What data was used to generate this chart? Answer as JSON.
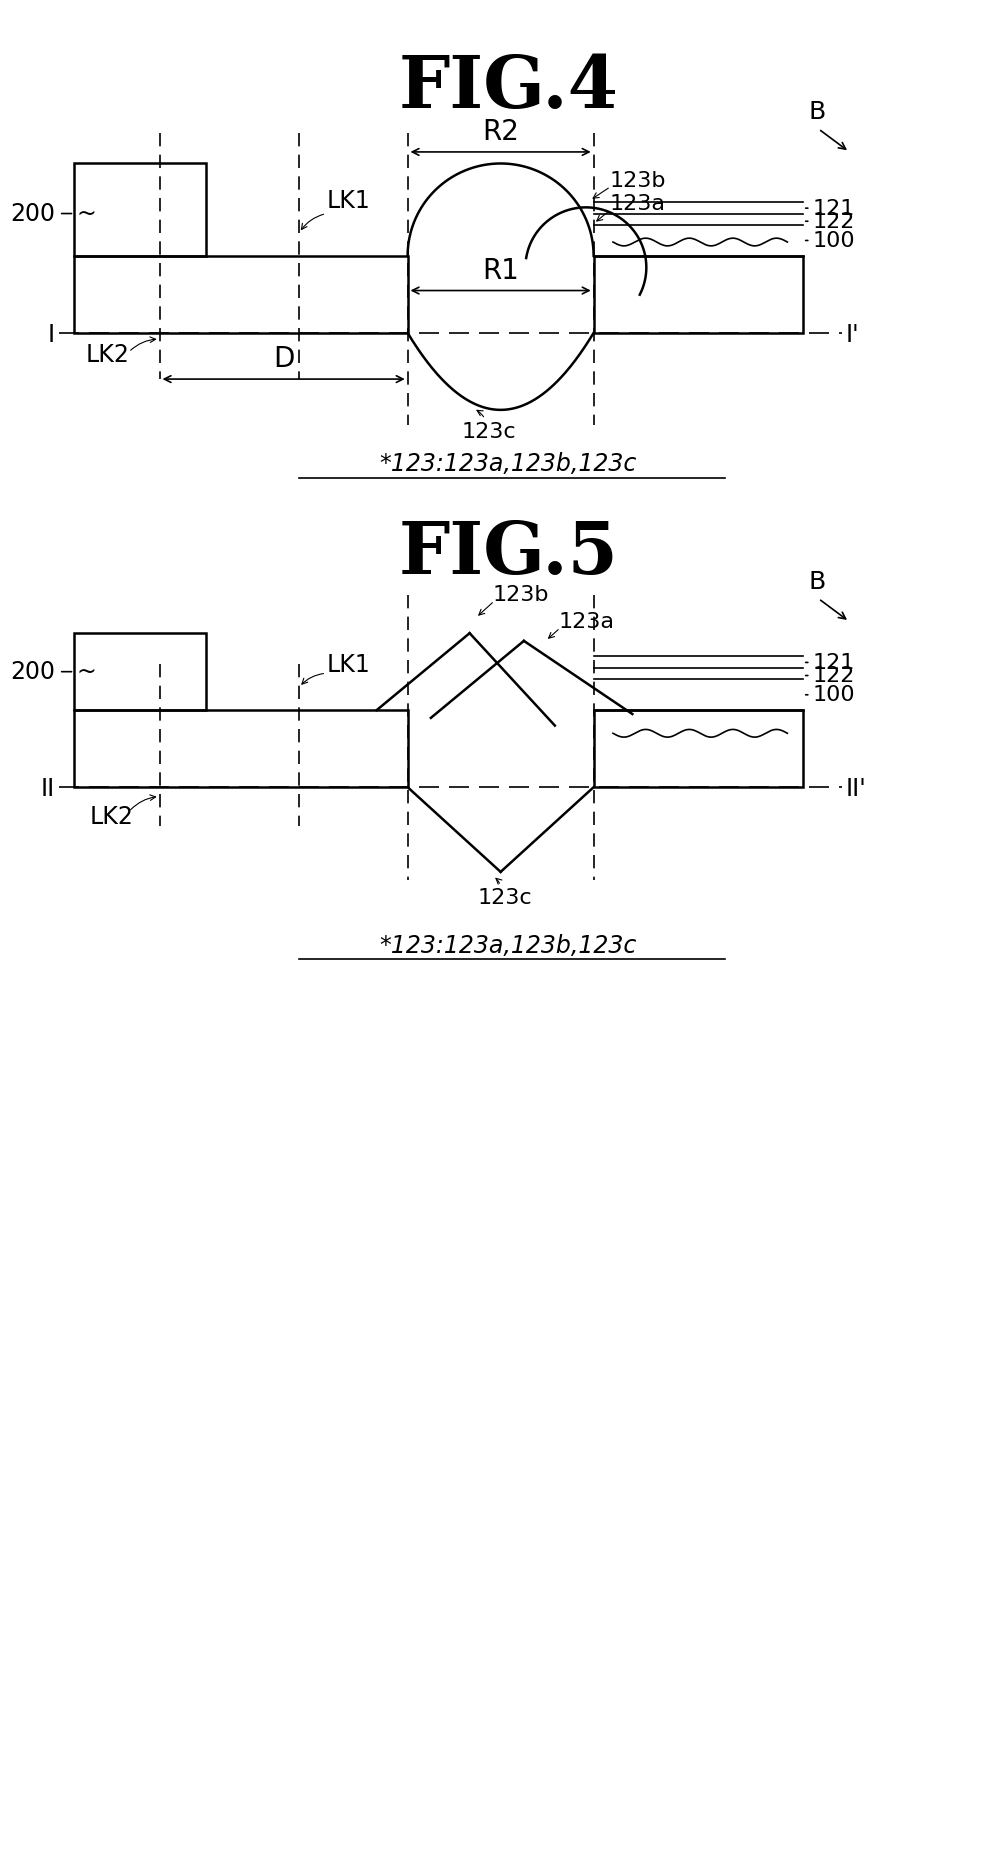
{
  "fig4_title": "FIG.4",
  "fig5_title": "FIG.5",
  "bg_color": "#ffffff",
  "line_color": "#000000",
  "note_text": "*123:123a,123b,123c",
  "lw": 1.8,
  "lw_thin": 1.2,
  "lw_thick": 2.2
}
